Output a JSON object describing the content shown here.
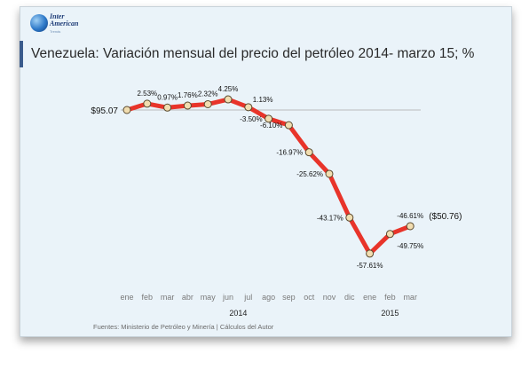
{
  "logo": {
    "name_line1": "Inter",
    "name_line2": "American",
    "sub": "Trends"
  },
  "chart_data": {
    "type": "line",
    "title": "Venezuela: Variación mensual del precio del petróleo 2014- marzo 15; %",
    "baseline_label": "$95.07",
    "end_label": "($50.76)",
    "categories": [
      "ene",
      "feb",
      "mar",
      "abr",
      "may",
      "jun",
      "jul",
      "ago",
      "sep",
      "oct",
      "nov",
      "dic",
      "ene",
      "feb",
      "mar"
    ],
    "year_labels": [
      {
        "label": "2014",
        "start_index": 0,
        "end_index": 11
      },
      {
        "label": "2015",
        "start_index": 12,
        "end_index": 14
      }
    ],
    "series": [
      {
        "values": [
          0,
          2.53,
          0.97,
          1.76,
          2.32,
          4.25,
          1.13,
          -3.5,
          -6.1,
          -16.97,
          -25.62,
          -43.17,
          -57.61,
          -49.75,
          -46.61
        ],
        "data_labels": [
          "",
          "2.53%",
          "0.97%",
          "1.76%",
          "2.32%",
          "4.25%",
          "1.13%",
          "-3.50%",
          "-6.10%",
          "-16.97%",
          "-25.62%",
          "-43.17%",
          "-57.61%",
          "-49.75%",
          "-46.61%"
        ]
      }
    ],
    "ylim": [
      -60,
      6
    ],
    "grid": false,
    "legend": "none",
    "colors": {
      "line": "#e8342a",
      "marker_fill": "#f1ddb0",
      "marker_stroke": "#5a4a2e",
      "background": "#eaf3f9"
    }
  },
  "source": "Fuentes: Ministerio de Petróleo y Minería | Cálculos del Autor"
}
